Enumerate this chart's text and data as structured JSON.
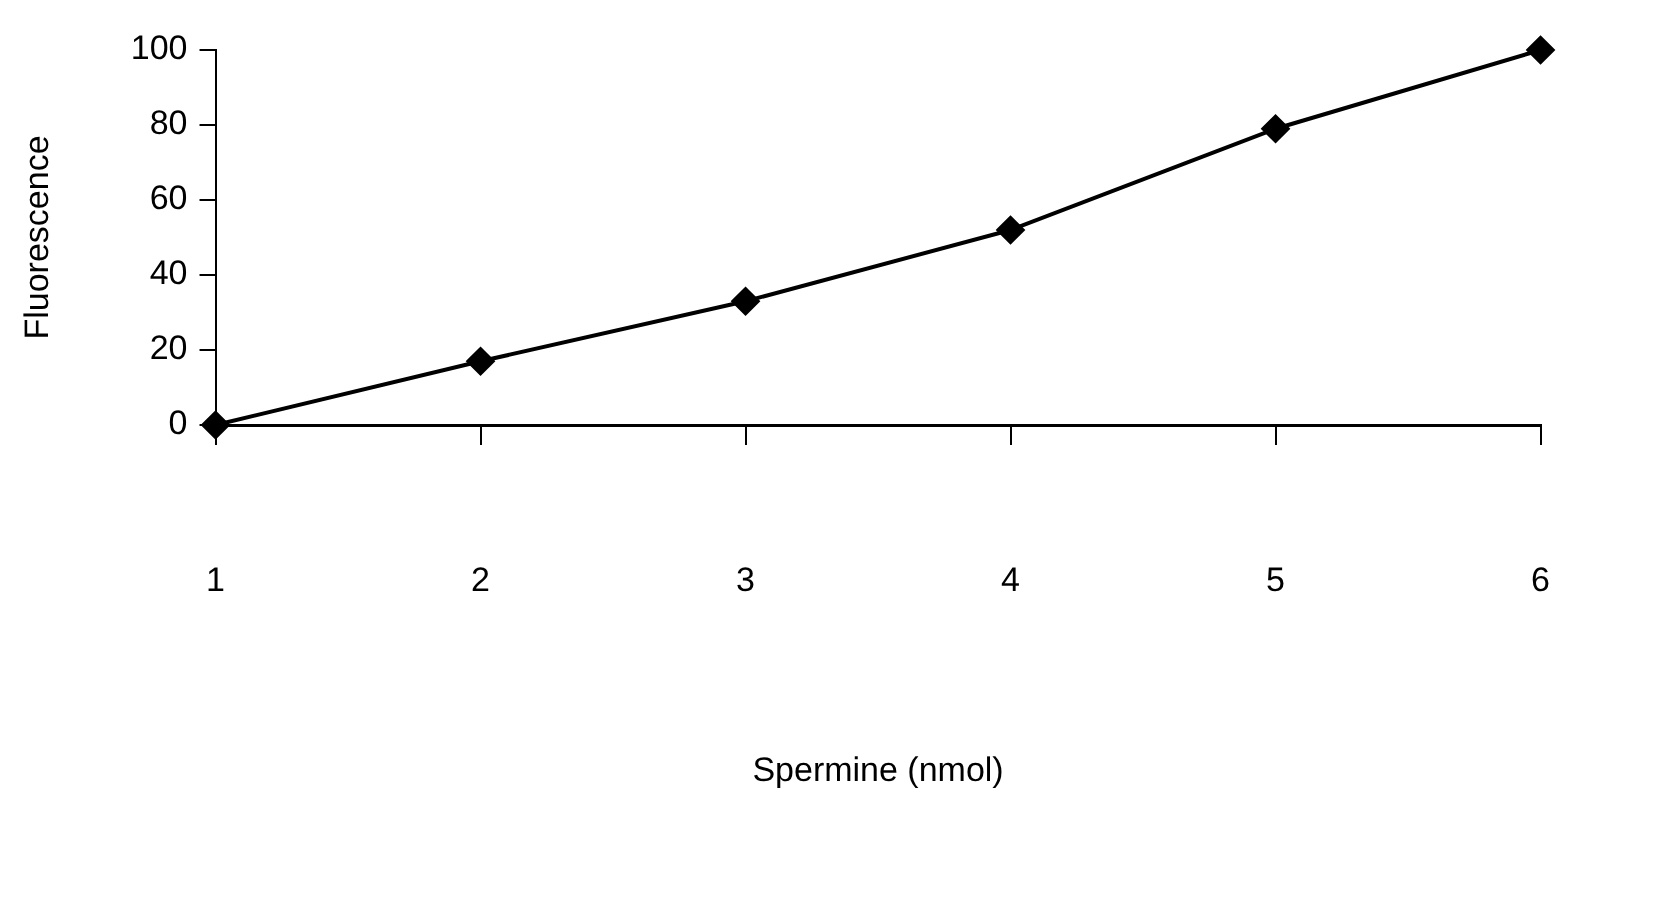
{
  "chart_data": {
    "type": "line",
    "xlabel": "Spermine (nmol)",
    "ylabel": "Fluorescence",
    "x": [
      1,
      2,
      3,
      4,
      5,
      6
    ],
    "series": [
      {
        "color": "#000000",
        "values": [
          0,
          17,
          33,
          52,
          79,
          100
        ]
      }
    ],
    "xlim": [
      1,
      6
    ],
    "xticks": [
      1,
      2,
      3,
      4,
      5,
      6
    ],
    "ylim": [
      0,
      100
    ],
    "yticks": [
      0,
      20,
      40,
      60,
      80,
      100
    ],
    "grid": false,
    "legend": false,
    "marker": "diamond",
    "line_style": "solid"
  }
}
